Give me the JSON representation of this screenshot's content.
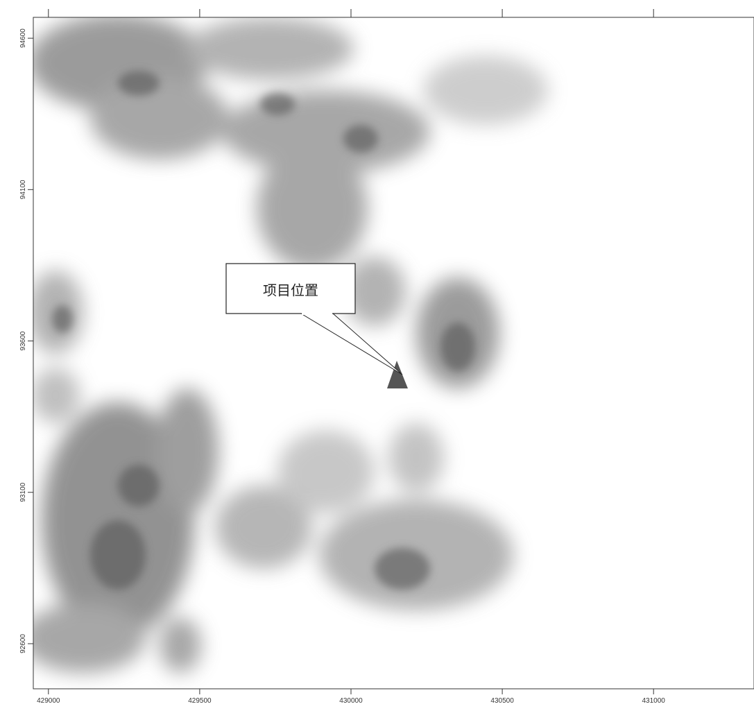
{
  "map": {
    "callout": "项目位置",
    "xlim": [
      428950,
      431332
    ],
    "ylim": [
      92451,
      94669
    ],
    "xticks": [
      429000,
      429500,
      430000,
      430500,
      431000
    ],
    "yticks": [
      94600,
      94100,
      93600,
      93100,
      92600
    ]
  }
}
